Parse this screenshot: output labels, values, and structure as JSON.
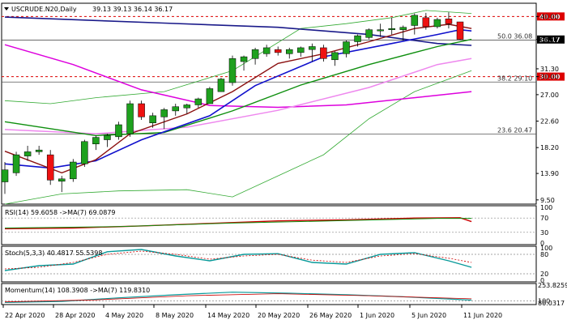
{
  "symbol_header": "USCRUDE.N20,Daily",
  "ohlc_header": "39.13 39.13 36.14 36.17",
  "colors": {
    "bull": "#1ea11e",
    "bear": "#ee1111",
    "ma_blue": "#1010cc",
    "ma_navy": "#1a1a8a",
    "ma_green": "#0f8f0f",
    "ma_red": "#8b1010",
    "ma_magenta": "#dd00dd",
    "ma_pink": "#ee88ee",
    "bollinger": "#33aa33",
    "level_red": "#dd0000",
    "osc_teal": "#0a9a9a",
    "osc_red": "#cc0000"
  },
  "price_axis": {
    "ticks": [
      "40.00",
      "36.17",
      "31.30",
      "30.00",
      "27.00",
      "22.60",
      "18.20",
      "13.90",
      "9.50"
    ]
  },
  "levels": [
    {
      "price": 40.0,
      "kind": "red-dashed",
      "badge": "40.00"
    },
    {
      "price": 36.08,
      "kind": "fib",
      "label": "50.0 36.08"
    },
    {
      "price": 36.17,
      "kind": "last",
      "badge": "36.17"
    },
    {
      "price": 30.0,
      "kind": "red-dashed",
      "badge": "30.00"
    },
    {
      "price": 29.1,
      "kind": "fib",
      "label": "38.2 29.10"
    },
    {
      "price": 20.47,
      "kind": "fib",
      "label": "23.6 20.47"
    }
  ],
  "date_axis": [
    "22 Apr 2020",
    "28 Apr 2020",
    "4 May 2020",
    "8 May 2020",
    "14 May 2020",
    "20 May 2020",
    "26 May 2020",
    "1 Jun 2020",
    "5 Jun 2020",
    "11 Jun 2020"
  ],
  "indicators": {
    "rsi": {
      "header": "RSI(14) 59.6058 ->MA(7) 69.0879",
      "ticks": [
        "100",
        "70",
        "30",
        "0"
      ]
    },
    "stoch": {
      "header": "Stoch(5,3,3) 40.4817 55.5398",
      "ticks": [
        "100",
        "80",
        "20",
        "0"
      ]
    },
    "momentum": {
      "header": "Momentum(14) 108.3908 ->MA(7) 119.8310",
      "ticks": [
        "253.8259",
        "100",
        "80.0317"
      ]
    }
  },
  "chart_data": {
    "type": "candlestick",
    "candles": [
      [
        12.5,
        15.8,
        10.5,
        14.5
      ],
      [
        14.0,
        17.5,
        13.5,
        17.0
      ],
      [
        16.8,
        18.5,
        16.0,
        17.5
      ],
      [
        17.5,
        18.5,
        17.0,
        17.8
      ],
      [
        17.0,
        17.8,
        12.0,
        12.8
      ],
      [
        12.6,
        13.5,
        10.8,
        13.0
      ],
      [
        13.0,
        16.3,
        12.5,
        15.8
      ],
      [
        15.5,
        19.5,
        15.0,
        19.2
      ],
      [
        18.8,
        20.2,
        17.8,
        19.9
      ],
      [
        19.5,
        20.5,
        18.3,
        20.2
      ],
      [
        20.0,
        22.5,
        19.5,
        22.0
      ],
      [
        20.5,
        26.0,
        20.0,
        25.5
      ],
      [
        25.5,
        26.0,
        22.8,
        23.3
      ],
      [
        22.3,
        24.0,
        21.5,
        23.5
      ],
      [
        23.3,
        24.8,
        21.3,
        24.5
      ],
      [
        24.3,
        25.5,
        23.5,
        25.0
      ],
      [
        24.8,
        25.5,
        23.8,
        25.3
      ],
      [
        25.3,
        26.5,
        24.8,
        26.3
      ],
      [
        25.5,
        28.3,
        25.5,
        28.0
      ],
      [
        27.5,
        29.8,
        27.5,
        29.6
      ],
      [
        29.0,
        33.5,
        28.5,
        33.0
      ],
      [
        32.5,
        33.5,
        31.0,
        33.3
      ],
      [
        33.0,
        34.8,
        32.0,
        34.5
      ],
      [
        33.8,
        35.3,
        33.3,
        34.8
      ],
      [
        34.5,
        35.0,
        33.5,
        34.0
      ],
      [
        33.8,
        34.8,
        33.0,
        34.5
      ],
      [
        34.0,
        35.0,
        33.3,
        34.8
      ],
      [
        34.5,
        35.5,
        32.5,
        35.0
      ],
      [
        34.8,
        35.3,
        32.5,
        33.0
      ],
      [
        32.8,
        34.2,
        31.8,
        34.0
      ],
      [
        33.8,
        36.0,
        33.2,
        35.8
      ],
      [
        35.8,
        37.0,
        35.0,
        36.8
      ],
      [
        36.5,
        38.0,
        36.2,
        37.8
      ],
      [
        37.6,
        38.8,
        36.6,
        37.8
      ],
      [
        37.8,
        39.8,
        37.0,
        38.0
      ],
      [
        37.8,
        38.5,
        36.0,
        38.2
      ],
      [
        38.5,
        40.5,
        37.0,
        40.2
      ],
      [
        39.8,
        40.6,
        37.8,
        38.3
      ],
      [
        38.3,
        39.8,
        38.0,
        39.5
      ],
      [
        39.6,
        40.7,
        38.0,
        38.8
      ],
      [
        39.1,
        39.1,
        36.1,
        36.2
      ]
    ],
    "moving_averages": [
      {
        "color": "ma_navy",
        "width": 1.6,
        "points": [
          [
            0,
            39.9
          ],
          [
            14,
            38.9
          ],
          [
            24,
            38.2
          ],
          [
            32,
            37.0
          ],
          [
            38,
            35.5
          ],
          [
            41,
            35.2
          ]
        ]
      },
      {
        "color": "ma_magenta",
        "width": 1.5,
        "points": [
          [
            0,
            35.3
          ],
          [
            6,
            32.0
          ],
          [
            12,
            27.8
          ],
          [
            18,
            25.2
          ],
          [
            24,
            24.9
          ],
          [
            30,
            25.3
          ],
          [
            36,
            26.5
          ],
          [
            41,
            27.5
          ]
        ]
      },
      {
        "color": "ma_pink",
        "width": 1.5,
        "points": [
          [
            0,
            21.2
          ],
          [
            8,
            20.5
          ],
          [
            16,
            21.6
          ],
          [
            24,
            24.4
          ],
          [
            32,
            28.2
          ],
          [
            38,
            32.0
          ],
          [
            41,
            33.0
          ]
        ]
      },
      {
        "color": "ma_green",
        "width": 1.4,
        "points": [
          [
            0,
            22.5
          ],
          [
            8,
            20.2
          ],
          [
            14,
            20.7
          ],
          [
            20,
            24.3
          ],
          [
            26,
            28.6
          ],
          [
            32,
            32.0
          ],
          [
            38,
            35.0
          ],
          [
            41,
            36.2
          ]
        ]
      },
      {
        "color": "ma_blue",
        "width": 1.6,
        "points": [
          [
            0,
            15.5
          ],
          [
            4,
            14.8
          ],
          [
            8,
            16.0
          ],
          [
            12,
            19.5
          ],
          [
            18,
            23.5
          ],
          [
            22,
            28.5
          ],
          [
            28,
            33.3
          ],
          [
            34,
            35.5
          ],
          [
            38,
            37.0
          ],
          [
            40,
            37.8
          ],
          [
            41,
            37.6
          ]
        ]
      },
      {
        "color": "ma_red",
        "width": 1.4,
        "points": [
          [
            0,
            17.6
          ],
          [
            5,
            14.0
          ],
          [
            8,
            16.2
          ],
          [
            11,
            20.5
          ],
          [
            16,
            23.8
          ],
          [
            20,
            27.5
          ],
          [
            24,
            32.2
          ],
          [
            28,
            33.8
          ],
          [
            32,
            35.8
          ],
          [
            36,
            38.0
          ],
          [
            39,
            38.7
          ],
          [
            41,
            38.0
          ]
        ]
      }
    ],
    "bollinger": [
      {
        "points": [
          [
            0,
            26.0
          ],
          [
            4,
            25.5
          ],
          [
            8,
            26.5
          ],
          [
            14,
            27.5
          ],
          [
            20,
            31.0
          ],
          [
            26,
            38.0
          ],
          [
            30,
            38.8
          ],
          [
            34,
            39.8
          ],
          [
            37,
            41.0
          ],
          [
            41,
            40.5
          ]
        ]
      },
      {
        "points": [
          [
            0,
            8.8
          ],
          [
            5,
            10.5
          ],
          [
            10,
            11.0
          ],
          [
            16,
            11.2
          ],
          [
            20,
            10.0
          ],
          [
            24,
            13.5
          ],
          [
            28,
            17.0
          ],
          [
            32,
            23.0
          ],
          [
            36,
            27.5
          ],
          [
            41,
            31.0
          ]
        ]
      }
    ],
    "rsi": {
      "series": [
        [
          0,
          40
        ],
        [
          6,
          42
        ],
        [
          12,
          48
        ],
        [
          18,
          55
        ],
        [
          24,
          62
        ],
        [
          30,
          65
        ],
        [
          36,
          70
        ],
        [
          40,
          71
        ],
        [
          41,
          60
        ]
      ],
      "signal": [
        [
          0,
          42
        ],
        [
          10,
          46
        ],
        [
          20,
          56
        ],
        [
          30,
          63
        ],
        [
          38,
          69
        ],
        [
          41,
          69
        ]
      ]
    },
    "stoch": {
      "k": [
        [
          0,
          30
        ],
        [
          3,
          45
        ],
        [
          6,
          50
        ],
        [
          9,
          88
        ],
        [
          12,
          95
        ],
        [
          15,
          75
        ],
        [
          18,
          60
        ],
        [
          21,
          80
        ],
        [
          24,
          82
        ],
        [
          27,
          55
        ],
        [
          30,
          50
        ],
        [
          33,
          80
        ],
        [
          36,
          85
        ],
        [
          39,
          60
        ],
        [
          41,
          40
        ]
      ],
      "d": [
        [
          0,
          35
        ],
        [
          3,
          40
        ],
        [
          6,
          55
        ],
        [
          9,
          80
        ],
        [
          12,
          90
        ],
        [
          15,
          80
        ],
        [
          18,
          65
        ],
        [
          21,
          75
        ],
        [
          24,
          80
        ],
        [
          27,
          62
        ],
        [
          30,
          55
        ],
        [
          33,
          75
        ],
        [
          36,
          82
        ],
        [
          39,
          68
        ],
        [
          41,
          55
        ]
      ]
    },
    "momentum": {
      "series": [
        [
          0,
          85
        ],
        [
          5,
          95
        ],
        [
          10,
          130
        ],
        [
          15,
          160
        ],
        [
          20,
          185
        ],
        [
          25,
          175
        ],
        [
          30,
          160
        ],
        [
          35,
          140
        ],
        [
          41,
          108
        ]
      ],
      "signal": [
        [
          0,
          90
        ],
        [
          8,
          110
        ],
        [
          16,
          150
        ],
        [
          24,
          170
        ],
        [
          32,
          150
        ],
        [
          41,
          120
        ]
      ]
    }
  }
}
